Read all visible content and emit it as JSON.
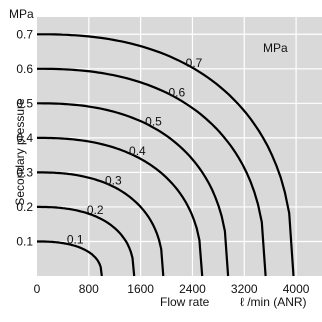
{
  "chart_data": {
    "type": "line",
    "y_unit_top": "MPa",
    "legend_unit": "MPa",
    "ylabel": "Secondary pressure",
    "xlabel": "Flow rate",
    "xunit": "ℓ /min (ANR)",
    "xlim": [
      0,
      4400
    ],
    "ylim": [
      0,
      0.75
    ],
    "x_ticks": [
      "0",
      "800",
      "1600",
      "2400",
      "3200",
      "4000"
    ],
    "x_tick_values": [
      0,
      800,
      1600,
      2400,
      3200,
      4000
    ],
    "y_ticks": [
      "0.1",
      "0.2",
      "0.3",
      "0.4",
      "0.5",
      "0.6",
      "0.7"
    ],
    "y_tick_values": [
      0.1,
      0.2,
      0.3,
      0.4,
      0.5,
      0.6,
      0.7
    ],
    "grid": true,
    "series": [
      {
        "name": "0.1",
        "set_pressure": 0.1,
        "max_flow": 1000
      },
      {
        "name": "0.2",
        "set_pressure": 0.2,
        "max_flow": 1500
      },
      {
        "name": "0.3",
        "set_pressure": 0.3,
        "max_flow": 1950
      },
      {
        "name": "0.4",
        "set_pressure": 0.4,
        "max_flow": 2550
      },
      {
        "name": "0.5",
        "set_pressure": 0.5,
        "max_flow": 2950
      },
      {
        "name": "0.6",
        "set_pressure": 0.6,
        "max_flow": 3530
      },
      {
        "name": "0.7",
        "set_pressure": 0.7,
        "max_flow": 3960
      }
    ]
  }
}
